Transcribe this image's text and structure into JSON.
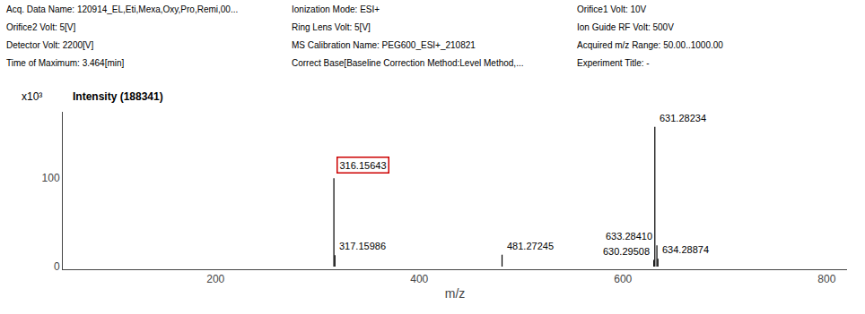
{
  "chart_data": {
    "type": "stem",
    "x": [
      316.15643,
      317.15986,
      481.27245,
      630.29508,
      631.28234,
      633.2841,
      634.28874
    ],
    "values": [
      100.0,
      13.0,
      13.5,
      7.5,
      158.0,
      24.0,
      9.0
    ],
    "color": "#000000",
    "xlabel": "m/z",
    "ylabel": "Intensity (188341)",
    "subtitle": [
      [
        "Acq. Data Name: 120914_EL,Eti,Mexa,Oxy,Pro,Remi,00...",
        "Ionization Mode: ESI+",
        "Orifice1 Volt: 10V"
      ],
      [
        "Orifice2 Volt: 5[V]",
        "Ring Lens Volt: 5[V]",
        "Ion Guide RF Volt: 500V"
      ],
      [
        "Detector Volt: 2200[V]",
        "MS Calibration Name: PEG600_ESI+_210821",
        "Acquired m/z Range: 50.00..1000.00"
      ],
      [
        "Time of Maximum: 3.464[min]",
        "Correct Base[Baseline Correction Method:Level Method,...",
        "Experiment Title: -"
      ]
    ],
    "annotations": [
      {
        "text": "x10³"
      },
      {
        "text": "316.15643",
        "x": 316.15643,
        "y": 100.0,
        "color": "#cc0000"
      },
      {
        "text": "317.15986",
        "x": 317.15986,
        "y": 13.0
      },
      {
        "text": "481.27245",
        "x": 481.27245,
        "y": 13.5
      },
      {
        "text": "630.29508",
        "x": 630.29508,
        "y": 7.5
      },
      {
        "text": "631.28234",
        "x": 631.28234,
        "y": 158.0
      },
      {
        "text": "633.28410",
        "x": 633.2841,
        "y": 24.0
      },
      {
        "text": "634.28874",
        "x": 634.28874,
        "y": 9.0
      }
    ],
    "xlim": [
      50,
      820
    ],
    "ylim": [
      -3,
      175
    ],
    "xticks": [
      200,
      400,
      600,
      800
    ],
    "yticks": [
      0,
      100
    ],
    "grid": false
  }
}
